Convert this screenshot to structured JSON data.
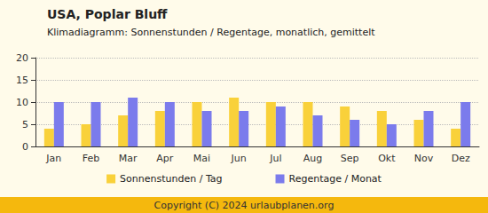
{
  "chart_data": {
    "type": "bar",
    "title": "USA, Poplar Bluff",
    "subtitle": "Klimadiagramm: Sonnenstunden / Regentage, monatlich, gemittelt",
    "categories": [
      "Jan",
      "Feb",
      "Mar",
      "Apr",
      "Mai",
      "Jun",
      "Jul",
      "Aug",
      "Sep",
      "Okt",
      "Nov",
      "Dez"
    ],
    "series": [
      {
        "name": "Sonnenstunden / Tag",
        "color": "#f9d13a",
        "values": [
          4,
          5,
          7,
          8,
          10,
          11,
          10,
          10,
          9,
          8,
          6,
          4
        ]
      },
      {
        "name": "Regentage / Monat",
        "color": "#7b7bec",
        "values": [
          10,
          10,
          11,
          10,
          8,
          8,
          9,
          7,
          6,
          5,
          8,
          10
        ]
      }
    ],
    "ylim": [
      0,
      20
    ],
    "yticks": [
      0,
      5,
      10,
      15,
      20
    ],
    "grid": true,
    "legend": "bottom"
  },
  "footer": "Copyright (C) 2024 urlaubplanen.org"
}
